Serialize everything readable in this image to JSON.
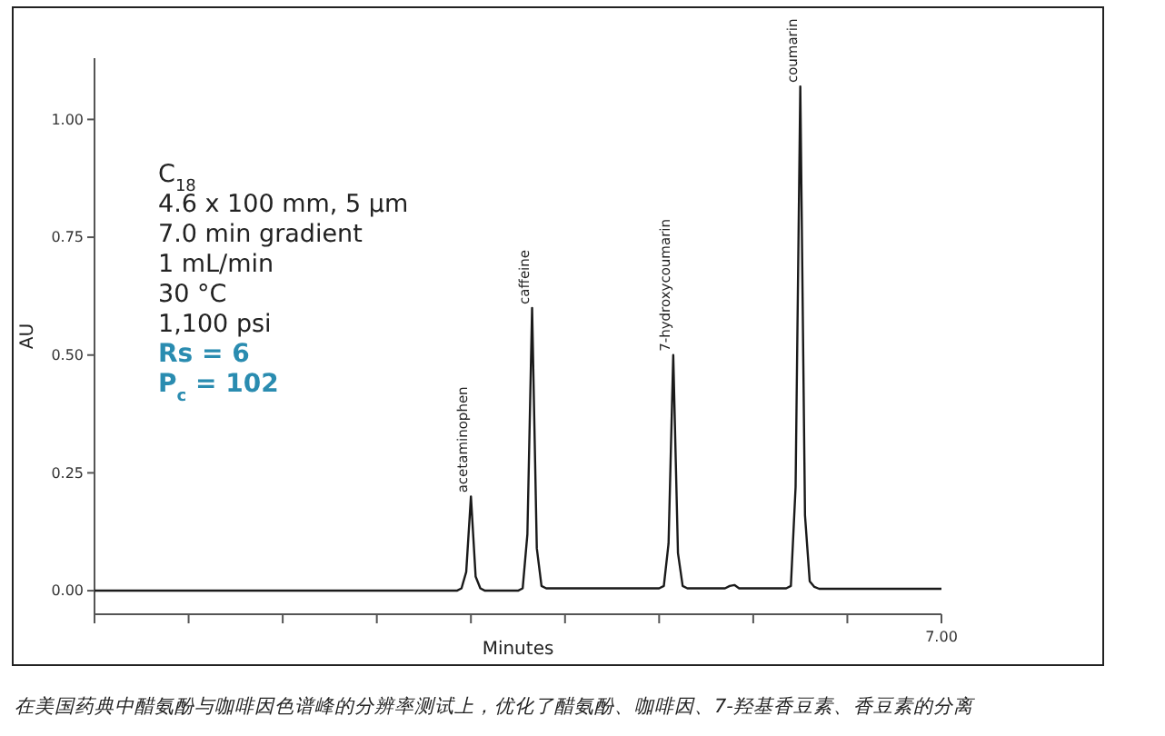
{
  "chart_data": {
    "type": "line",
    "xlabel": "Minutes",
    "ylabel": "AU",
    "ylim": [
      -0.05,
      1.13
    ],
    "yticks": [
      {
        "value": 0,
        "label": "0.00"
      },
      {
        "value": 0.25,
        "label": "0.25"
      },
      {
        "value": 0.5,
        "label": "0.50"
      },
      {
        "value": 0.75,
        "label": "0.75"
      },
      {
        "value": 1.0,
        "label": "1.00"
      }
    ],
    "categories": [
      null,
      null,
      null,
      null,
      null,
      null,
      null,
      null,
      null,
      null,
      null,
      null,
      null,
      null,
      null,
      null,
      null,
      null,
      null,
      null,
      null,
      null,
      null,
      null,
      null,
      null,
      null,
      null,
      null,
      null,
      null,
      null,
      null,
      null,
      null,
      null,
      null,
      null,
      null,
      null,
      null,
      null,
      null,
      null,
      null,
      null,
      null,
      null,
      null,
      null,
      null,
      null,
      null,
      null,
      null,
      null,
      null,
      null,
      null,
      null,
      null,
      null,
      null,
      null,
      null,
      null,
      null,
      null,
      null,
      null,
      null,
      null,
      null,
      null,
      null,
      null,
      null,
      null,
      null,
      null,
      null,
      null,
      null,
      null,
      null,
      null,
      null,
      null,
      null,
      null,
      null,
      null,
      null,
      null,
      null,
      null,
      null,
      null,
      null,
      null,
      null,
      null,
      null,
      null,
      null,
      null,
      null,
      null,
      null,
      null,
      null,
      null,
      null,
      null,
      null,
      null,
      null,
      null,
      null,
      null,
      null,
      null,
      null,
      null,
      null,
      null,
      null,
      null,
      null,
      null,
      null,
      null,
      null,
      null,
      null,
      null,
      null,
      null,
      null,
      null,
      null,
      null,
      null,
      null,
      null,
      null,
      null,
      null,
      null,
      null,
      null,
      null,
      null,
      null,
      null,
      null,
      null,
      null,
      null,
      null,
      null,
      null,
      null,
      null,
      null,
      null,
      null,
      null,
      null,
      null,
      null,
      null,
      null,
      null,
      null,
      null,
      null,
      null,
      null,
      null,
      null
    ],
    "series": [
      {
        "color": "#1a1a1a",
        "values": [
          0,
          0,
          0,
          0,
          0,
          0,
          0,
          0,
          0,
          0,
          0,
          0,
          0,
          0,
          0,
          0,
          0,
          0,
          0,
          0,
          0,
          0,
          0,
          0,
          0,
          0,
          0,
          0,
          0,
          0,
          0,
          0,
          0,
          0,
          0,
          0,
          0,
          0,
          0,
          0,
          0,
          0,
          0,
          0,
          0,
          0,
          0,
          0,
          0,
          0,
          0,
          0,
          0,
          0,
          0,
          0,
          0,
          0,
          0,
          0,
          0,
          0,
          0,
          0,
          0,
          0,
          0,
          0,
          0,
          0,
          0,
          0,
          0,
          0,
          0,
          0,
          0,
          0,
          0.005,
          0.04,
          0.2,
          0.03,
          0.005,
          0,
          0,
          0,
          0,
          0,
          0,
          0,
          0,
          0.005,
          0.12,
          0.6,
          0.09,
          0.01,
          0.005,
          0.005,
          0.005,
          0.005,
          0.005,
          0.005,
          0.005,
          0.005,
          0.005,
          0.005,
          0.005,
          0.005,
          0.005,
          0.005,
          0.005,
          0.005,
          0.005,
          0.005,
          0.005,
          0.005,
          0.005,
          0.005,
          0.005,
          0.005,
          0.005,
          0.01,
          0.1,
          0.5,
          0.08,
          0.01,
          0.005,
          0.005,
          0.005,
          0.005,
          0.005,
          0.005,
          0.005,
          0.005,
          0.005,
          0.01,
          0.012,
          0.005,
          0.005,
          0.005,
          0.005,
          0.005,
          0.005,
          0.005,
          0.005,
          0.005,
          0.005,
          0.005,
          0.01,
          0.22,
          1.07,
          0.16,
          0.02,
          0.008,
          0.004,
          0.004,
          0.004,
          0.004,
          0.004,
          0.004,
          0.004,
          0.004,
          0.004,
          0.004,
          0.004,
          0.004,
          0.004,
          0.004,
          0.004,
          0.004,
          0.004,
          0.004,
          0.004,
          0.004,
          0.004,
          0.004,
          0.004,
          0.004,
          0.004,
          0.004,
          0.004
        ]
      }
    ],
    "annotations": [
      "acetaminophen",
      "caffeine",
      "7-hydroxycoumarin",
      "coumarin",
      "7.00",
      "C$_{18}$",
      "4.6 x 100 mm, 5 µm",
      "7.0 min gradient",
      "1 mL/min",
      "30 °C",
      "1,100 psi",
      "Rs = 6",
      "P$_{c}$ = 102",
      "在美国药典中醋氨酚与咖啡因色谱峰的分辨率测试上，优化了醋氨酚、咖啡因、7-羟基香豆素、香豆素的分离"
    ]
  }
}
